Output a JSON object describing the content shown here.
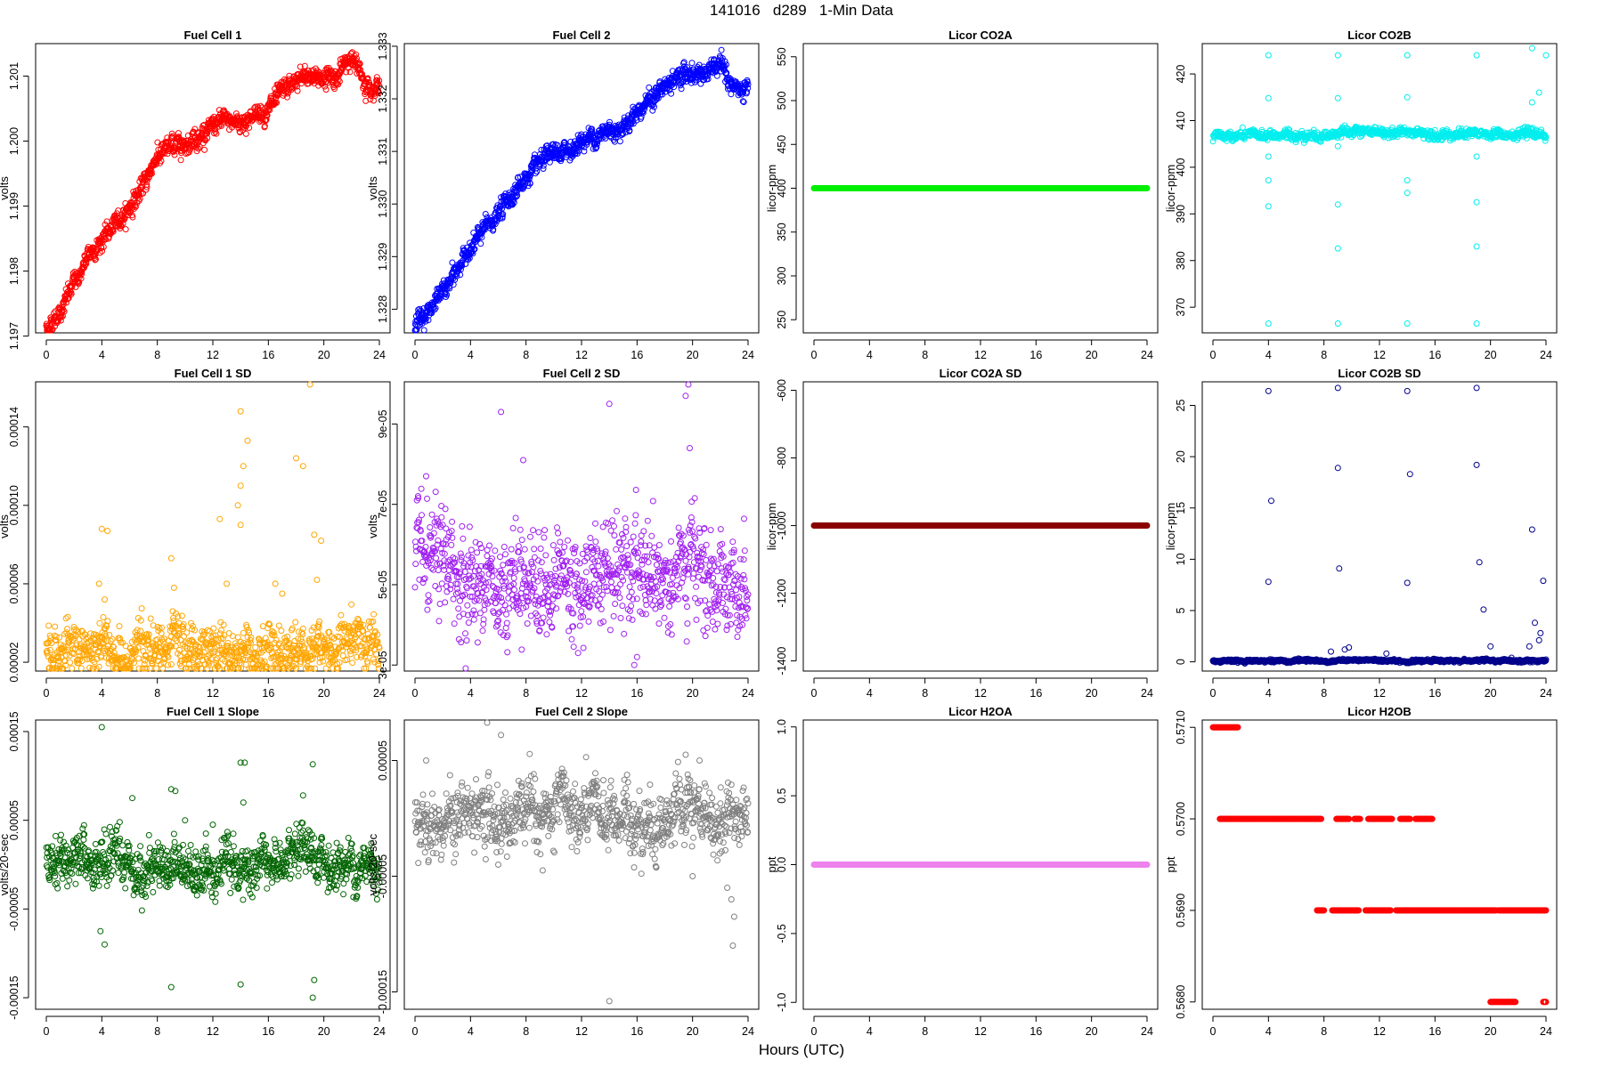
{
  "page": {
    "title": "141016   d289   1-Min Data",
    "xlabel": "Hours (UTC)"
  },
  "chart_data": [
    {
      "type": "scatter",
      "title": "Fuel Cell 1",
      "ylabel": "volts",
      "color": "#ff0000",
      "xlim": [
        0,
        24
      ],
      "xticks": [
        0,
        4,
        8,
        12,
        16,
        20,
        24
      ],
      "ylim": [
        1.19705,
        1.2015
      ],
      "yticks": [
        1.197,
        1.198,
        1.199,
        1.2,
        1.201
      ],
      "ytick_labels": [
        "1.197",
        "1.198",
        "1.199",
        "1.200",
        "1.201"
      ],
      "points": [
        [
          0,
          1.1971
        ],
        [
          1,
          1.1974
        ],
        [
          2,
          1.1978
        ],
        [
          3,
          1.1982
        ],
        [
          4,
          1.1985
        ],
        [
          5,
          1.1987
        ],
        [
          6,
          1.199
        ],
        [
          7,
          1.1993
        ],
        [
          8,
          1.1998
        ],
        [
          9,
          1.1999
        ],
        [
          10,
          1.2
        ],
        [
          11,
          1.2001
        ],
        [
          12,
          1.2002
        ],
        [
          13,
          1.2003
        ],
        [
          14,
          1.2003
        ],
        [
          15,
          1.2004
        ],
        [
          16,
          1.2005
        ],
        [
          17,
          1.2007
        ],
        [
          18,
          1.2009
        ],
        [
          19,
          1.201
        ],
        [
          20,
          1.201
        ],
        [
          21,
          1.201
        ],
        [
          22,
          1.2013
        ],
        [
          23,
          1.2009
        ],
        [
          24,
          1.2009
        ]
      ],
      "spread": 9e-05,
      "n": 1100
    },
    {
      "type": "scatter",
      "title": "Fuel Cell 2",
      "ylabel": "volts",
      "color": "#0000ff",
      "xlim": [
        0,
        24
      ],
      "xticks": [
        0,
        4,
        8,
        12,
        16,
        20,
        24
      ],
      "ylim": [
        1.32755,
        1.33305
      ],
      "yticks": [
        1.328,
        1.329,
        1.33,
        1.331,
        1.332,
        1.333
      ],
      "ytick_labels": [
        "1.328",
        "1.329",
        "1.330",
        "1.331",
        "1.332",
        "1.333"
      ],
      "points": [
        [
          0,
          1.3277
        ],
        [
          1,
          1.328
        ],
        [
          2,
          1.3283
        ],
        [
          3,
          1.3287
        ],
        [
          4,
          1.3292
        ],
        [
          5,
          1.3295
        ],
        [
          6,
          1.3298
        ],
        [
          7,
          1.3302
        ],
        [
          8,
          1.3305
        ],
        [
          9,
          1.3307
        ],
        [
          10,
          1.3309
        ],
        [
          11,
          1.331
        ],
        [
          12,
          1.3312
        ],
        [
          13,
          1.3313
        ],
        [
          14,
          1.3314
        ],
        [
          15,
          1.3315
        ],
        [
          16,
          1.3318
        ],
        [
          17,
          1.332
        ],
        [
          18,
          1.3322
        ],
        [
          19,
          1.3324
        ],
        [
          20,
          1.3325
        ],
        [
          21,
          1.3325
        ],
        [
          22,
          1.3326
        ],
        [
          23,
          1.3322
        ],
        [
          24,
          1.3321
        ]
      ],
      "spread": 0.00011,
      "n": 1100
    },
    {
      "type": "scatter",
      "title": "Licor CO2A",
      "ylabel": "licor-ppm",
      "color": "#00ee00",
      "xlim": [
        0,
        24
      ],
      "xticks": [
        0,
        4,
        8,
        12,
        16,
        20,
        24
      ],
      "ylim": [
        235,
        565
      ],
      "yticks": [
        250,
        300,
        350,
        400,
        450,
        500,
        550
      ],
      "ytick_labels": [
        "250",
        "300",
        "350",
        "400",
        "450",
        "500",
        "550"
      ],
      "points": [
        [
          0,
          400
        ],
        [
          24,
          400
        ]
      ],
      "spread": 0,
      "n": 600
    },
    {
      "type": "scatter",
      "title": "Licor CO2B",
      "ylabel": "licor-ppm",
      "color": "#00eeee",
      "xlim": [
        0,
        24
      ],
      "xticks": [
        0,
        4,
        8,
        12,
        16,
        20,
        24
      ],
      "ylim": [
        364.5,
        426.5
      ],
      "yticks": [
        370,
        380,
        390,
        400,
        410,
        420
      ],
      "ytick_labels": [
        "370",
        "380",
        "390",
        "400",
        "410",
        "420"
      ],
      "points": [
        [
          0,
          406.5
        ],
        [
          4,
          406.8
        ],
        [
          8,
          407.0
        ],
        [
          12,
          407.6
        ],
        [
          16,
          407.3
        ],
        [
          20,
          407.0
        ],
        [
          24,
          407.0
        ]
      ],
      "spread": 0.6,
      "n": 900,
      "outliers": [
        [
          4,
          424
        ],
        [
          4,
          366.5
        ],
        [
          4,
          414.8
        ],
        [
          4,
          397.2
        ],
        [
          4,
          391.6
        ],
        [
          4,
          402.3
        ],
        [
          9,
          424
        ],
        [
          9,
          366.5
        ],
        [
          9,
          414.8
        ],
        [
          9,
          392.0
        ],
        [
          9,
          382.6
        ],
        [
          9,
          404.5
        ],
        [
          14,
          424
        ],
        [
          14,
          366.5
        ],
        [
          14,
          415.0
        ],
        [
          14,
          397.2
        ],
        [
          14,
          394.5
        ],
        [
          19,
          424
        ],
        [
          19,
          366.5
        ],
        [
          19,
          392.5
        ],
        [
          19,
          383.0
        ],
        [
          19,
          402.3
        ],
        [
          23,
          425.5
        ],
        [
          23,
          413.9
        ],
        [
          24,
          424
        ],
        [
          23.5,
          416
        ]
      ]
    },
    {
      "type": "scatter",
      "title": "Fuel Cell 1 SD",
      "ylabel": "volts",
      "color": "#ffa500",
      "xlim": [
        0,
        24
      ],
      "xticks": [
        0,
        4,
        8,
        12,
        16,
        20,
        24
      ],
      "ylim": [
        1.55e-05,
        0.000163
      ],
      "yticks": [
        2e-05,
        6e-05,
        0.0001,
        0.00014
      ],
      "ytick_labels": [
        "0.00002",
        "0.00006",
        "0.00010",
        "0.00014"
      ],
      "points": [
        [
          0,
          2.5e-05
        ],
        [
          24,
          2.8e-05
        ]
      ],
      "spread": 8e-06,
      "n": 1000,
      "outliers": [
        [
          4,
          8.8e-05
        ],
        [
          4.4,
          8.7e-05
        ],
        [
          3.8,
          6e-05
        ],
        [
          4.2,
          5.2e-05
        ],
        [
          9,
          7.3e-05
        ],
        [
          9.2,
          5.8e-05
        ],
        [
          12.5,
          9.3e-05
        ],
        [
          13,
          6e-05
        ],
        [
          14,
          0.00011
        ],
        [
          14,
          0.000148
        ],
        [
          14.2,
          0.00012
        ],
        [
          14.5,
          0.000133
        ],
        [
          13.8,
          0.0001
        ],
        [
          14,
          9e-05
        ],
        [
          18,
          0.000124
        ],
        [
          18.5,
          0.00012
        ],
        [
          19,
          0.000162
        ],
        [
          19.3,
          8.5e-05
        ],
        [
          19.8,
          8.2e-05
        ],
        [
          19.5,
          6.2e-05
        ],
        [
          16.5,
          6e-05
        ],
        [
          17,
          5.5e-05
        ]
      ]
    },
    {
      "type": "scatter",
      "title": "Fuel Cell 2 SD",
      "ylabel": "volts",
      "color": "#a020f0",
      "xlim": [
        0,
        24
      ],
      "xticks": [
        0,
        4,
        8,
        12,
        16,
        20,
        24
      ],
      "ylim": [
        2.85e-05,
        0.0001005
      ],
      "yticks": [
        3e-05,
        5e-05,
        7e-05,
        9e-05
      ],
      "ytick_labels": [
        "3e-05",
        "5e-05",
        "7e-05",
        "9e-05"
      ],
      "points": [
        [
          0,
          5.2e-05
        ],
        [
          24,
          5.2e-05
        ]
      ],
      "spread": 7.5e-06,
      "n": 1000,
      "outliers": [
        [
          0.8,
          7.7e-05
        ],
        [
          6.2,
          9.3e-05
        ],
        [
          7.8,
          8.1e-05
        ],
        [
          14,
          9.5e-05
        ],
        [
          19.5,
          9.7e-05
        ],
        [
          19.7,
          0.0001
        ],
        [
          19.8,
          8.4e-05
        ],
        [
          15.8,
          3e-05
        ],
        [
          16,
          3.2e-05
        ]
      ]
    },
    {
      "type": "scatter",
      "title": "Licor CO2A SD",
      "ylabel": "licor-ppm",
      "color": "#8b0000",
      "xlim": [
        0,
        24
      ],
      "xticks": [
        0,
        4,
        8,
        12,
        16,
        20,
        24
      ],
      "ylim": [
        -1430,
        -575
      ],
      "yticks": [
        -1400,
        -1200,
        -1000,
        -800,
        -600
      ],
      "ytick_labels": [
        "-1400",
        "-1200",
        "-1000",
        "-800",
        "-600"
      ],
      "points": [
        [
          0,
          -1000
        ],
        [
          24,
          -1000
        ]
      ],
      "spread": 0,
      "n": 600
    },
    {
      "type": "scatter",
      "title": "Licor CO2B SD",
      "ylabel": "licor-ppm",
      "color": "#00008b",
      "xlim": [
        0,
        24
      ],
      "xticks": [
        0,
        4,
        8,
        12,
        16,
        20,
        24
      ],
      "ylim": [
        -0.9,
        27.3
      ],
      "yticks": [
        0,
        5,
        10,
        15,
        20,
        25
      ],
      "ytick_labels": [
        "0",
        "5",
        "10",
        "15",
        "20",
        "25"
      ],
      "points": [
        [
          0,
          0.1
        ],
        [
          24,
          0.1
        ]
      ],
      "spread": 0.08,
      "n": 900,
      "outliers": [
        [
          4,
          26.4
        ],
        [
          4,
          7.8
        ],
        [
          4.2,
          15.7
        ],
        [
          9,
          26.7
        ],
        [
          9,
          18.9
        ],
        [
          9.1,
          9.1
        ],
        [
          14,
          26.4
        ],
        [
          14,
          7.7
        ],
        [
          14.2,
          18.3
        ],
        [
          19,
          26.7
        ],
        [
          19,
          19.2
        ],
        [
          19.2,
          9.7
        ],
        [
          19.5,
          5.1
        ],
        [
          20,
          1.5
        ],
        [
          23,
          12.9
        ],
        [
          23.2,
          3.8
        ],
        [
          23.8,
          7.9
        ],
        [
          23.5,
          2.1
        ],
        [
          9.5,
          1.2
        ],
        [
          9.8,
          1.4
        ],
        [
          8.5,
          1.0
        ],
        [
          12.5,
          0.8
        ],
        [
          22.8,
          1.5
        ],
        [
          23.6,
          2.8
        ]
      ]
    },
    {
      "type": "scatter",
      "title": "Fuel Cell 1 Slope",
      "ylabel": "volts/20-sec",
      "color": "#006400",
      "xlim": [
        0,
        24
      ],
      "xticks": [
        0,
        4,
        8,
        12,
        16,
        20,
        24
      ],
      "ylim": [
        -0.000163,
        0.000163
      ],
      "yticks": [
        -0.00015,
        -5e-05,
        5e-05,
        0.00015
      ],
      "ytick_labels": [
        "-0.00015",
        "-0.00005",
        "0.00005",
        "0.00015"
      ],
      "points": [
        [
          0,
          0
        ],
        [
          24,
          0
        ]
      ],
      "spread": 1.7e-05,
      "n": 1000,
      "outliers": [
        [
          4,
          0.000155
        ],
        [
          4.2,
          -9e-05
        ],
        [
          3.9,
          -7.5e-05
        ],
        [
          6.2,
          7.5e-05
        ],
        [
          9,
          8.5e-05
        ],
        [
          9.3,
          8.3e-05
        ],
        [
          9,
          -0.000138
        ],
        [
          11.5,
          3.5e-05
        ],
        [
          12,
          4.5e-05
        ],
        [
          14,
          0.000115
        ],
        [
          14.3,
          0.000115
        ],
        [
          14,
          -0.000135
        ],
        [
          14.2,
          7e-05
        ],
        [
          18.5,
          7.8e-05
        ],
        [
          19.2,
          0.000113
        ],
        [
          19.3,
          -0.00013
        ],
        [
          19.2,
          -0.00015
        ],
        [
          10,
          5e-05
        ]
      ]
    },
    {
      "type": "scatter",
      "title": "Fuel Cell 2 Slope",
      "ylabel": "volts/20-sec",
      "color": "#808080",
      "xlim": [
        0,
        24
      ],
      "xticks": [
        0,
        4,
        8,
        12,
        16,
        20,
        24
      ],
      "ylim": [
        -0.000165,
        8.5e-05
      ],
      "yticks": [
        -0.00015,
        -5e-05,
        5e-05
      ],
      "ytick_labels": [
        "-0.00015",
        "-0.00005",
        "0.00005"
      ],
      "points": [
        [
          0,
          0
        ],
        [
          24,
          0
        ]
      ],
      "spread": 1.7e-05,
      "n": 1000,
      "outliers": [
        [
          5.2,
          8.3e-05
        ],
        [
          6.2,
          7.2e-05
        ],
        [
          0.8,
          5e-05
        ],
        [
          19.5,
          5.5e-05
        ],
        [
          20.5,
          5e-05
        ],
        [
          14,
          -0.000158
        ],
        [
          9.2,
          -4.5e-05
        ],
        [
          20,
          -5e-05
        ],
        [
          22.5,
          -6e-05
        ],
        [
          22.8,
          -7e-05
        ],
        [
          22.9,
          -0.00011
        ],
        [
          23,
          -8.5e-05
        ],
        [
          6,
          -4e-05
        ]
      ]
    },
    {
      "type": "scatter",
      "title": "Licor H2OA",
      "ylabel": "ppt",
      "color": "#ee82ee",
      "xlim": [
        0,
        24
      ],
      "xticks": [
        0,
        4,
        8,
        12,
        16,
        20,
        24
      ],
      "ylim": [
        -1.05,
        1.05
      ],
      "yticks": [
        -1.0,
        -0.5,
        0.0,
        0.5,
        1.0
      ],
      "ytick_labels": [
        "-1.0",
        "-0.5",
        "0.0",
        "0.5",
        "1.0"
      ],
      "points": [
        [
          0,
          0
        ],
        [
          24,
          0
        ]
      ],
      "spread": 0,
      "n": 600
    },
    {
      "type": "scatter",
      "title": "Licor H2OB",
      "ylabel": "ppt",
      "color": "#ff0000",
      "xlim": [
        0,
        24
      ],
      "xticks": [
        0,
        4,
        8,
        12,
        16,
        20,
        24
      ],
      "ylim": [
        0.56792,
        0.57108
      ],
      "yticks": [
        0.568,
        0.569,
        0.57,
        0.571
      ],
      "ytick_labels": [
        "0.5680",
        "0.5690",
        "0.5700",
        "0.5710"
      ],
      "segments": [
        [
          0,
          1.8,
          0.571
        ],
        [
          0.5,
          7.8,
          0.57
        ],
        [
          8.9,
          9.8,
          0.57
        ],
        [
          10.2,
          10.6,
          0.57
        ],
        [
          11.2,
          12.9,
          0.57
        ],
        [
          13.5,
          14.2,
          0.57
        ],
        [
          14.6,
          15.8,
          0.57
        ],
        [
          7.5,
          8.0,
          0.569
        ],
        [
          8.6,
          10.5,
          0.569
        ],
        [
          11,
          12.8,
          0.569
        ],
        [
          13.2,
          20.4,
          0.569
        ],
        [
          20.6,
          24,
          0.569
        ],
        [
          20,
          21.8,
          0.568
        ],
        [
          23.8,
          24,
          0.568
        ]
      ],
      "n": 700
    }
  ]
}
